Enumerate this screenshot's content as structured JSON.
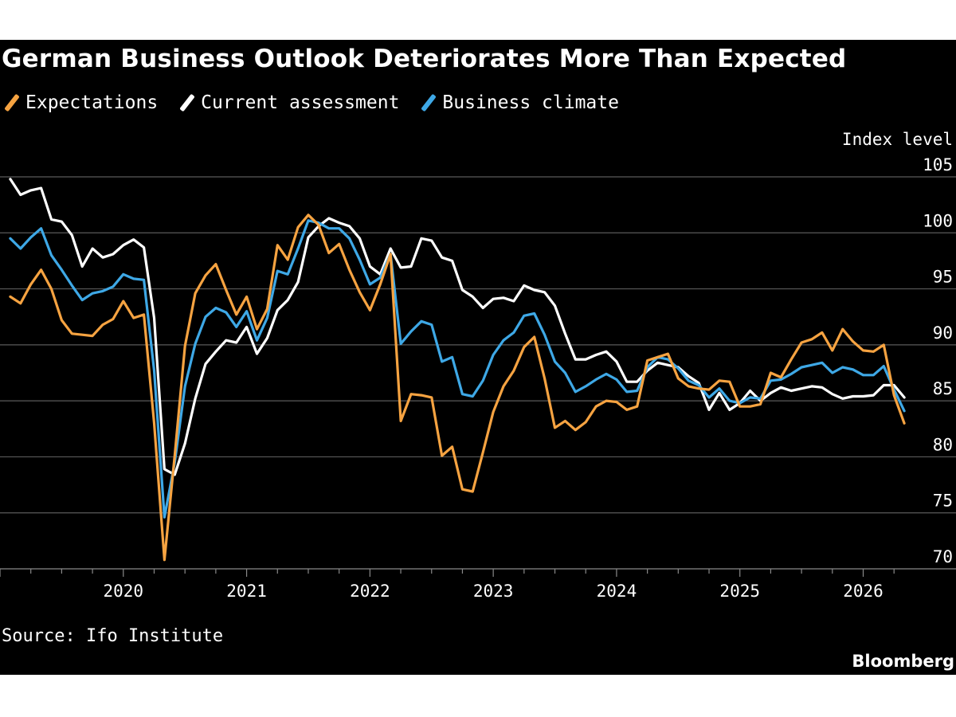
{
  "chart_data": {
    "type": "line",
    "title": "German Business Outlook Deteriorates More Than Expected",
    "ylabel": "Index level",
    "source": "Source: Ifo Institute",
    "brand": "Bloomberg",
    "x_start": "2019-02",
    "x_axis_range": [
      "2019-01",
      "2026-06"
    ],
    "x_ticks": [
      "2020",
      "2021",
      "2022",
      "2023",
      "2024",
      "2025",
      "2026"
    ],
    "ylim": [
      70,
      106
    ],
    "y_ticks": [
      105,
      100,
      95,
      90,
      85,
      80,
      75,
      70
    ],
    "grid": true,
    "legend_position": "top-left",
    "series": [
      {
        "name": "Expectations",
        "color": "#f6a341",
        "values": [
          94.3,
          93.7,
          95.4,
          96.7,
          95.0,
          92.2,
          91.0,
          90.9,
          90.8,
          91.8,
          92.3,
          93.9,
          92.4,
          92.7,
          83.0,
          70.8,
          80.1,
          89.9,
          94.6,
          96.2,
          97.2,
          94.9,
          92.7,
          94.3,
          91.4,
          93.2,
          98.9,
          97.6,
          100.5,
          101.6,
          100.7,
          98.2,
          99.0,
          96.7,
          94.7,
          93.1,
          95.4,
          98.1,
          83.2,
          85.6,
          85.5,
          85.3,
          80.1,
          80.9,
          77.1,
          76.9,
          80.4,
          84.0,
          86.3,
          87.7,
          89.8,
          90.7,
          87.0,
          82.6,
          83.2,
          82.4,
          83.1,
          84.5,
          85.0,
          84.9,
          84.2,
          84.5,
          88.6,
          88.9,
          89.2,
          87.0,
          86.3,
          86.1,
          86.0,
          86.8,
          86.7,
          84.5,
          84.5,
          84.7,
          87.5,
          87.1,
          88.7,
          90.2,
          90.5,
          91.1,
          89.5,
          91.4,
          90.3,
          89.5,
          89.4,
          90.0,
          85.5,
          83.0
        ]
      },
      {
        "name": "Current assessment",
        "color": "#ffffff",
        "values": [
          104.8,
          103.4,
          103.8,
          104.0,
          101.2,
          101.0,
          99.8,
          97.0,
          98.6,
          97.8,
          98.1,
          98.9,
          99.4,
          98.7,
          92.4,
          78.9,
          78.4,
          81.2,
          85.2,
          88.3,
          89.4,
          90.4,
          90.2,
          91.6,
          89.2,
          90.6,
          93.1,
          94.0,
          95.6,
          99.6,
          100.6,
          101.3,
          100.9,
          100.6,
          99.5,
          97.0,
          96.3,
          98.6,
          96.9,
          97.0,
          99.5,
          99.3,
          97.8,
          97.5,
          94.9,
          94.3,
          93.3,
          94.1,
          94.2,
          93.9,
          95.3,
          94.9,
          94.7,
          93.5,
          91.0,
          88.7,
          88.7,
          89.1,
          89.4,
          88.5,
          86.7,
          86.7,
          87.7,
          88.4,
          88.2,
          88.0,
          87.2,
          86.6,
          84.2,
          85.7,
          84.2,
          84.8,
          85.9,
          85.0,
          85.7,
          86.2,
          85.9,
          86.1,
          86.3,
          86.2,
          85.6,
          85.2,
          85.4,
          85.4,
          85.5,
          86.4,
          86.4,
          85.3
        ]
      },
      {
        "name": "Business climate",
        "color": "#3ea8e6",
        "values": [
          99.5,
          98.6,
          99.6,
          100.4,
          98.0,
          96.7,
          95.3,
          94.0,
          94.6,
          94.8,
          95.2,
          96.3,
          95.9,
          95.8,
          87.7,
          74.6,
          79.5,
          86.3,
          90.1,
          92.5,
          93.3,
          92.9,
          91.6,
          93.0,
          90.4,
          92.4,
          96.6,
          96.3,
          98.6,
          101.1,
          100.9,
          100.4,
          100.4,
          99.5,
          97.6,
          95.4,
          96.0,
          98.1,
          90.1,
          91.2,
          92.1,
          91.8,
          88.5,
          88.9,
          85.6,
          85.4,
          86.8,
          89.1,
          90.4,
          91.1,
          92.6,
          92.8,
          90.9,
          88.5,
          87.5,
          85.8,
          86.3,
          86.9,
          87.4,
          86.9,
          85.8,
          85.9,
          88.0,
          88.9,
          88.7,
          87.9,
          86.8,
          86.4,
          85.3,
          86.1,
          85.0,
          84.8,
          85.3,
          85.2,
          86.8,
          86.9,
          87.4,
          88.0,
          88.2,
          88.4,
          87.5,
          88.0,
          87.8,
          87.3,
          87.3,
          88.1,
          86.0,
          84.1
        ]
      }
    ]
  }
}
